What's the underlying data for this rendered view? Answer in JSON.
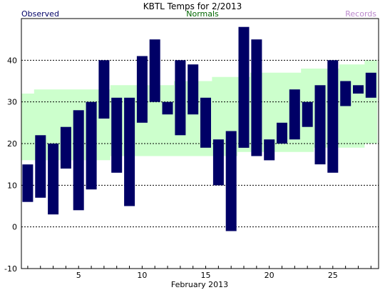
{
  "chart_data": {
    "type": "bar",
    "title": "KBTL Temps for 2/2013",
    "xlabel": "February 2013",
    "ylabel": "",
    "legend": {
      "observed": "Observed",
      "normals": "Normals",
      "records": "Records",
      "placement": "top"
    },
    "colors": {
      "observed": "#000066",
      "normals_band": "#ccffcc",
      "normals_text": "#006600",
      "records_text": "#bb88cc",
      "grid": "#000000"
    },
    "ylim": [
      -10,
      50
    ],
    "xlim": [
      0.5,
      28.6
    ],
    "y_ticks": [
      -10,
      0,
      10,
      20,
      30,
      40
    ],
    "x_ticks": [
      5,
      10,
      15,
      20,
      25
    ],
    "grid": "horizontal dashed",
    "days": [
      1,
      2,
      3,
      4,
      5,
      6,
      7,
      8,
      9,
      10,
      11,
      12,
      13,
      14,
      15,
      16,
      17,
      18,
      19,
      20,
      21,
      22,
      23,
      24,
      25,
      26,
      27,
      28
    ],
    "observed_high": [
      15,
      22,
      20,
      24,
      28,
      30,
      40,
      31,
      31,
      41,
      45,
      30,
      40,
      39,
      31,
      21,
      23,
      48,
      45,
      21,
      25,
      33,
      30,
      34,
      40,
      35,
      34,
      37
    ],
    "observed_low": [
      6,
      7,
      3,
      14,
      4,
      9,
      26,
      13,
      5,
      25,
      30,
      27,
      22,
      27,
      19,
      10,
      -1,
      19,
      17,
      16,
      20,
      21,
      24,
      15,
      13,
      29,
      32,
      31
    ],
    "normal_high": [
      32,
      33,
      33,
      33,
      33,
      33,
      33,
      34,
      34,
      34,
      34,
      34,
      35,
      35,
      35,
      36,
      36,
      36,
      37,
      37,
      37,
      37,
      38,
      38,
      38,
      39,
      39,
      40
    ],
    "normal_low": [
      16,
      16,
      16,
      16,
      16,
      16,
      16,
      17,
      17,
      17,
      17,
      17,
      17,
      17,
      17,
      17,
      17,
      18,
      18,
      18,
      18,
      18,
      18,
      19,
      19,
      19,
      19,
      20
    ]
  }
}
